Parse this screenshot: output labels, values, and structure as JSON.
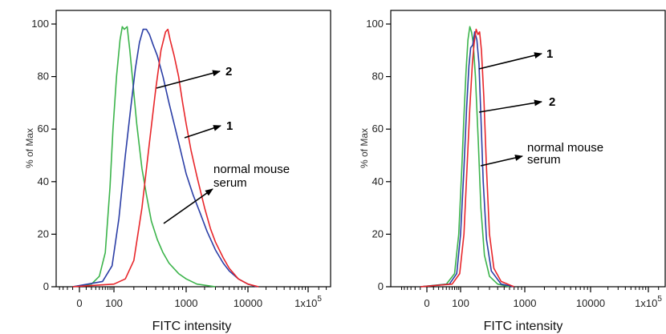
{
  "chart_data": [
    {
      "type": "line",
      "title": "",
      "xlabel": "FITC intensity",
      "ylabel": "% of Max",
      "xscale": "biexponential",
      "ylim": [
        0,
        100
      ],
      "grid": false,
      "x_ticks": [
        0,
        100,
        1000,
        10000,
        100000
      ],
      "x_tick_labels": [
        "0",
        "100",
        "1000",
        "10000",
        "1x10^5"
      ],
      "y_ticks": [
        0,
        20,
        40,
        60,
        80,
        100
      ],
      "y_tick_labels": [
        "0",
        "20",
        "40",
        "60",
        "80",
        "100"
      ],
      "series": [
        {
          "color": "#3cb44b",
          "points": [
            [
              -10,
              0
            ],
            [
              20,
              1
            ],
            [
              40,
              4
            ],
            [
              60,
              13
            ],
            [
              80,
              38
            ],
            [
              95,
              60
            ],
            [
              110,
              80
            ],
            [
              125,
              94
            ],
            [
              135,
              99
            ],
            [
              145,
              98
            ],
            [
              160,
              99
            ],
            [
              175,
              90
            ],
            [
              190,
              80
            ],
            [
              220,
              62
            ],
            [
              260,
              45
            ],
            [
              300,
              35
            ],
            [
              350,
              25
            ],
            [
              420,
              18
            ],
            [
              500,
              13
            ],
            [
              600,
              9
            ],
            [
              800,
              5
            ],
            [
              1000,
              3
            ],
            [
              1500,
              1
            ],
            [
              3000,
              0
            ]
          ]
        },
        {
          "color": "#2b3ea6",
          "points": [
            [
              -10,
              0
            ],
            [
              50,
              2
            ],
            [
              90,
              8
            ],
            [
              120,
              26
            ],
            [
              150,
              50
            ],
            [
              180,
              68
            ],
            [
              210,
              83
            ],
            [
              240,
              93
            ],
            [
              270,
              98
            ],
            [
              300,
              98
            ],
            [
              330,
              96
            ],
            [
              370,
              92
            ],
            [
              420,
              88
            ],
            [
              500,
              80
            ],
            [
              600,
              70
            ],
            [
              700,
              62
            ],
            [
              800,
              55
            ],
            [
              1000,
              43
            ],
            [
              1300,
              35
            ],
            [
              1700,
              28
            ],
            [
              2200,
              21
            ],
            [
              3000,
              14
            ],
            [
              4000,
              9
            ],
            [
              5000,
              6
            ],
            [
              7000,
              3
            ],
            [
              10000,
              1
            ],
            [
              14000,
              0
            ]
          ]
        },
        {
          "color": "#e8262a",
          "points": [
            [
              -10,
              0
            ],
            [
              100,
              1
            ],
            [
              150,
              3
            ],
            [
              200,
              10
            ],
            [
              260,
              30
            ],
            [
              330,
              55
            ],
            [
              400,
              75
            ],
            [
              470,
              90
            ],
            [
              540,
              97
            ],
            [
              580,
              98
            ],
            [
              620,
              94
            ],
            [
              700,
              88
            ],
            [
              800,
              80
            ],
            [
              900,
              70
            ],
            [
              1000,
              62
            ],
            [
              1200,
              52
            ],
            [
              1500,
              42
            ],
            [
              2000,
              30
            ],
            [
              2500,
              22
            ],
            [
              3000,
              17
            ],
            [
              4000,
              11
            ],
            [
              5000,
              7
            ],
            [
              7000,
              3
            ],
            [
              10000,
              1
            ],
            [
              15000,
              0
            ]
          ]
        }
      ],
      "annotations": [
        {
          "text": "2"
        },
        {
          "text": "1"
        },
        {
          "text": "normal mouse",
          "text2": "serum"
        }
      ]
    },
    {
      "type": "line",
      "title": "",
      "xlabel": "FITC intensity",
      "ylabel": "% of Max",
      "xscale": "biexponential",
      "ylim": [
        0,
        100
      ],
      "grid": false,
      "x_ticks": [
        0,
        100,
        1000,
        10000,
        100000
      ],
      "x_tick_labels": [
        "0",
        "100",
        "1000",
        "10000",
        "1x10^5"
      ],
      "y_ticks": [
        0,
        20,
        40,
        60,
        80,
        100
      ],
      "y_tick_labels": [
        "0",
        "20",
        "40",
        "60",
        "80",
        "100"
      ],
      "series": [
        {
          "color": "#3cb44b",
          "points": [
            [
              -10,
              0
            ],
            [
              40,
              1
            ],
            [
              70,
              5
            ],
            [
              90,
              20
            ],
            [
              105,
              45
            ],
            [
              115,
              65
            ],
            [
              125,
              82
            ],
            [
              135,
              94
            ],
            [
              145,
              99
            ],
            [
              155,
              97
            ],
            [
              165,
              93
            ],
            [
              180,
              80
            ],
            [
              200,
              55
            ],
            [
              220,
              30
            ],
            [
              250,
              12
            ],
            [
              300,
              4
            ],
            [
              400,
              1
            ],
            [
              600,
              0
            ]
          ]
        },
        {
          "color": "#2b3ea6",
          "points": [
            [
              -10,
              0
            ],
            [
              50,
              1
            ],
            [
              80,
              5
            ],
            [
              100,
              20
            ],
            [
              115,
              45
            ],
            [
              128,
              68
            ],
            [
              140,
              84
            ],
            [
              150,
              91
            ],
            [
              162,
              92
            ],
            [
              175,
              97
            ],
            [
              190,
              94
            ],
            [
              205,
              85
            ],
            [
              220,
              65
            ],
            [
              240,
              40
            ],
            [
              270,
              18
            ],
            [
              320,
              6
            ],
            [
              450,
              1
            ],
            [
              700,
              0
            ]
          ]
        },
        {
          "color": "#e8262a",
          "points": [
            [
              -10,
              0
            ],
            [
              60,
              1
            ],
            [
              95,
              5
            ],
            [
              115,
              20
            ],
            [
              130,
              45
            ],
            [
              145,
              68
            ],
            [
              160,
              85
            ],
            [
              172,
              93
            ],
            [
              185,
              98
            ],
            [
              198,
              96
            ],
            [
              210,
              97
            ],
            [
              225,
              90
            ],
            [
              245,
              72
            ],
            [
              270,
              45
            ],
            [
              300,
              20
            ],
            [
              350,
              7
            ],
            [
              450,
              2
            ],
            [
              700,
              0
            ]
          ]
        }
      ],
      "annotations": [
        {
          "text": "1"
        },
        {
          "text": "2"
        },
        {
          "text": "normal mouse",
          "text2": "serum"
        }
      ]
    }
  ]
}
